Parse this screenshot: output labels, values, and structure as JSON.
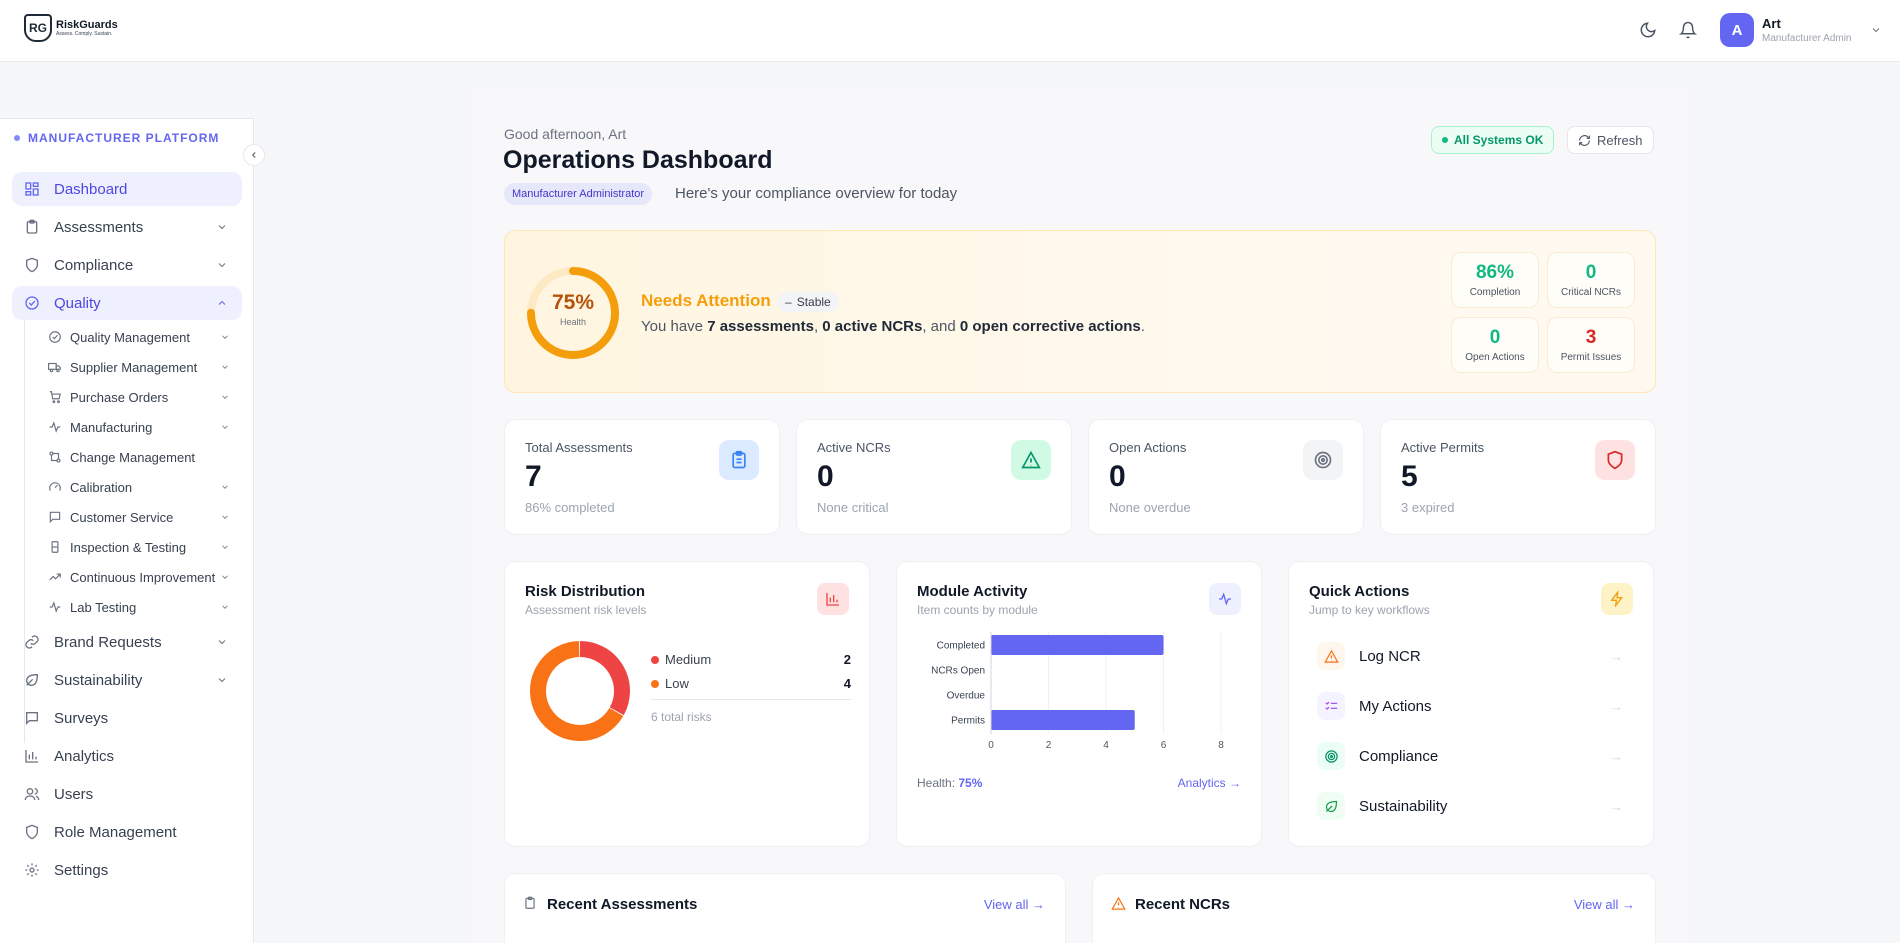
{
  "header": {
    "logo_name": "RiskGuards",
    "logo_tagline": "Assess. Comply. Sustain.",
    "user_initial": "A",
    "user_name": "Art",
    "user_role": "Manufacturer Admin"
  },
  "sidebar": {
    "platform_label": "MANUFACTURER PLATFORM",
    "items": [
      {
        "label": "Dashboard",
        "icon": "dashboard-icon"
      },
      {
        "label": "Assessments",
        "icon": "clipboard-icon"
      },
      {
        "label": "Compliance",
        "icon": "shield-icon"
      },
      {
        "label": "Quality",
        "icon": "check-circle-icon"
      },
      {
        "label": "Brand Requests",
        "icon": "link-icon"
      },
      {
        "label": "Sustainability",
        "icon": "leaf-icon"
      },
      {
        "label": "Surveys",
        "icon": "message-icon"
      },
      {
        "label": "Analytics",
        "icon": "bar-chart-icon"
      },
      {
        "label": "Users",
        "icon": "users-icon"
      },
      {
        "label": "Role Management",
        "icon": "shield-icon"
      },
      {
        "label": "Settings",
        "icon": "gear-icon"
      }
    ],
    "quality_sub": [
      {
        "label": "Quality Management"
      },
      {
        "label": "Supplier Management"
      },
      {
        "label": "Purchase Orders"
      },
      {
        "label": "Manufacturing"
      },
      {
        "label": "Change Management"
      },
      {
        "label": "Calibration"
      },
      {
        "label": "Customer Service"
      },
      {
        "label": "Inspection & Testing"
      },
      {
        "label": "Continuous Improvement"
      },
      {
        "label": "Lab Testing"
      }
    ]
  },
  "main": {
    "greeting": "Good afternoon, Art",
    "title": "Operations Dashboard",
    "role_badge": "Manufacturer Administrator",
    "overview_text": "Here's your compliance overview for today",
    "status_button": "All Systems OK",
    "refresh_button": "Refresh"
  },
  "health": {
    "percent_label": "75%",
    "percent_value": 75,
    "ring_label": "Health",
    "status": "Needs Attention",
    "trend": "Stable",
    "summary_prefix": "You have ",
    "summary_assessments": "7 assessments",
    "summary_sep1": ", ",
    "summary_ncrs": "0 active NCRs",
    "summary_sep2": ", and ",
    "summary_actions": "0 open corrective actions",
    "summary_end": ".",
    "mini": [
      {
        "value": "86%",
        "label": "Completion",
        "color": "#10b981"
      },
      {
        "value": "0",
        "label": "Critical NCRs",
        "color": "#10b981"
      },
      {
        "value": "0",
        "label": "Open Actions",
        "color": "#10b981"
      },
      {
        "value": "3",
        "label": "Permit Issues",
        "color": "#dc2626"
      }
    ]
  },
  "stats": [
    {
      "title": "Total Assessments",
      "value": "7",
      "sub": "86% completed",
      "icon": "clipboard-icon"
    },
    {
      "title": "Active NCRs",
      "value": "0",
      "sub": "None critical",
      "icon": "warning-icon"
    },
    {
      "title": "Open Actions",
      "value": "0",
      "sub": "None overdue",
      "icon": "target-icon"
    },
    {
      "title": "Active Permits",
      "value": "5",
      "sub": "3 expired",
      "icon": "shield-icon"
    }
  ],
  "risk": {
    "title": "Risk Distribution",
    "subtitle": "Assessment risk levels",
    "legend": [
      {
        "label": "Medium",
        "value": "2",
        "color": "#ef4444"
      },
      {
        "label": "Low",
        "value": "4",
        "color": "#f97316"
      }
    ],
    "total": "6 total risks"
  },
  "module": {
    "title": "Module Activity",
    "subtitle": "Item counts by module",
    "health_label": "Health:",
    "health_value": "75%",
    "analytics_link": "Analytics →"
  },
  "chart_data": {
    "type": "bar",
    "orientation": "horizontal",
    "categories": [
      "Completed",
      "NCRs Open",
      "Overdue",
      "Permits"
    ],
    "values": [
      6,
      0,
      0,
      5
    ],
    "xlim": [
      0,
      8
    ],
    "xticks": [
      "0",
      "2",
      "4",
      "6",
      "8"
    ],
    "color": "#6366f1",
    "grid": true
  },
  "quick": {
    "title": "Quick Actions",
    "subtitle": "Jump to key workflows",
    "items": [
      {
        "label": "Log NCR",
        "icon": "warning-icon"
      },
      {
        "label": "My Actions",
        "icon": "checklist-icon"
      },
      {
        "label": "Compliance",
        "icon": "target-icon"
      },
      {
        "label": "Sustainability",
        "icon": "leaf-icon"
      }
    ]
  },
  "recent": {
    "assessments_title": "Recent Assessments",
    "ncrs_title": "Recent NCRs",
    "view_all": "View all →"
  }
}
